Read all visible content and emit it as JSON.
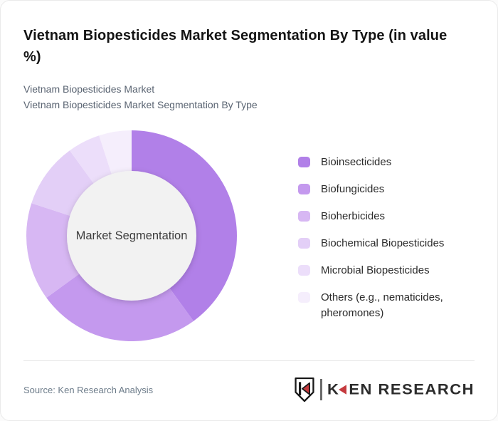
{
  "header": {
    "title": "Vietnam Biopesticides Market Segmentation By Type (in value %)",
    "subtitle_line1": "Vietnam Biopesticides Market",
    "subtitle_line2": "Vietnam Biopesticides Market Segmentation By Type"
  },
  "chart_data": {
    "type": "pie",
    "variant": "donut",
    "title": "Vietnam Biopesticides Market Segmentation By Type (in value %)",
    "unit": "value %",
    "center_label": "Market Segmentation",
    "categories": [
      "Bioinsecticides",
      "Biofungicides",
      "Bioherbicides",
      "Biochemical Biopesticides",
      "Microbial Biopesticides",
      "Others (e.g., nematicides, pheromones)"
    ],
    "values": [
      40,
      25,
      15,
      10,
      5,
      5
    ],
    "colors": [
      "#b180e8",
      "#c499ee",
      "#d7b7f3",
      "#e3cff7",
      "#ecdefa",
      "#f5eefc"
    ],
    "start_angle_deg": 0,
    "direction": "clockwise",
    "outer_radius_px": 148,
    "inner_radius_px": 91,
    "inner_circle_color": "#f2f2f2",
    "legend_position": "right",
    "data_labels_shown": false
  },
  "footer": {
    "source": "Source: Ken Research Analysis",
    "logo_shield_letter": "K",
    "logo_word_first_letter": "K",
    "logo_word_rest": "EN RESEARCH",
    "logo_red": "#c53a3e"
  }
}
